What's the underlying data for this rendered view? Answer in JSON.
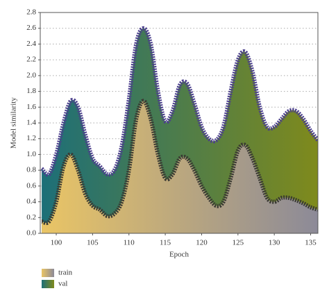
{
  "chart_data": {
    "type": "area",
    "x_label": "Epoch",
    "y_label": "Model similarity",
    "x": [
      98,
      99,
      100,
      101,
      102,
      103,
      104,
      105,
      106,
      107,
      108,
      109,
      110,
      111,
      112,
      113,
      114,
      115,
      116,
      117,
      118,
      119,
      120,
      121,
      122,
      123,
      124,
      125,
      126,
      127,
      128,
      129,
      130,
      131,
      132,
      133,
      134,
      135,
      136
    ],
    "series": [
      {
        "name": "val",
        "gradient": [
          "#1d6f78",
          "#7f8a1c"
        ],
        "line_color": "#4b3f8c",
        "values": [
          0.82,
          0.75,
          1.0,
          1.4,
          1.68,
          1.6,
          1.25,
          0.95,
          0.85,
          0.75,
          0.8,
          1.1,
          1.7,
          2.4,
          2.6,
          2.4,
          1.8,
          1.42,
          1.55,
          1.88,
          1.9,
          1.65,
          1.35,
          1.2,
          1.18,
          1.35,
          1.8,
          2.2,
          2.3,
          2.05,
          1.6,
          1.35,
          1.35,
          1.45,
          1.55,
          1.55,
          1.45,
          1.3,
          1.18
        ]
      },
      {
        "name": "train",
        "gradient": [
          "#eac565",
          "#8c8a98"
        ],
        "line_color": "#3a3a32",
        "values": [
          0.15,
          0.15,
          0.4,
          0.85,
          1.0,
          0.8,
          0.5,
          0.35,
          0.3,
          0.22,
          0.25,
          0.4,
          0.8,
          1.45,
          1.68,
          1.45,
          1.0,
          0.7,
          0.75,
          0.95,
          0.95,
          0.8,
          0.6,
          0.45,
          0.35,
          0.4,
          0.7,
          1.05,
          1.12,
          0.95,
          0.7,
          0.45,
          0.4,
          0.45,
          0.45,
          0.42,
          0.38,
          0.33,
          0.3
        ]
      }
    ],
    "xlim": [
      97.8,
      136
    ],
    "xticks": [
      100,
      105,
      110,
      115,
      120,
      125,
      130,
      135
    ],
    "ylim": [
      0,
      2.8
    ],
    "yticks": [
      {
        "value": 0,
        "label": "0.0"
      },
      0.2,
      0.4,
      0.6,
      0.8,
      {
        "value": 1,
        "label": "1.0"
      },
      1.2,
      1.4,
      1.6,
      1.8,
      {
        "value": 2,
        "label": "2.0"
      },
      2.2,
      2.4,
      2.6,
      2.8
    ],
    "grid": true
  }
}
